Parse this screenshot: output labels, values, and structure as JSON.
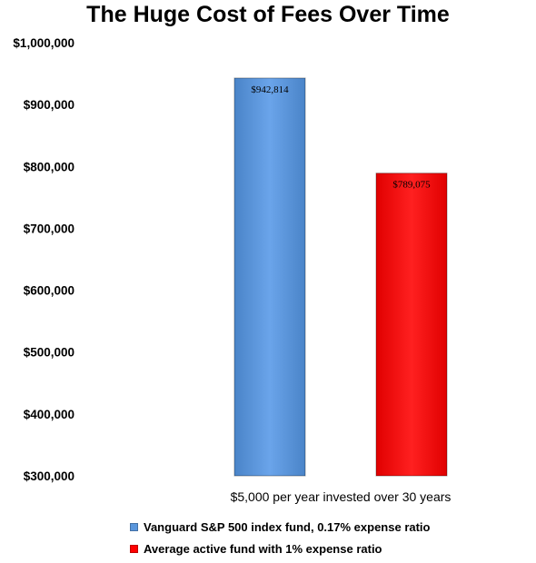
{
  "chart_data": {
    "type": "bar",
    "title": "The Huge Cost of Fees Over Time",
    "xlabel": "$5,000 per year invested over 30 years",
    "ylabel": "",
    "ylim": [
      300000,
      1000000
    ],
    "yticks": [
      "$300,000",
      "$400,000",
      "$500,000",
      "$600,000",
      "$700,000",
      "$800,000",
      "$900,000",
      "$1,000,000"
    ],
    "ytick_values": [
      300000,
      400000,
      500000,
      600000,
      700000,
      800000,
      900000,
      1000000
    ],
    "grid": false,
    "legend_position": "bottom",
    "series": [
      {
        "name": "Vanguard S&P 500 index fund, 0.17% expense ratio",
        "value": 942814,
        "label": "$942,814",
        "color": "#5a96dc"
      },
      {
        "name": "Average active fund with 1% expense ratio",
        "value": 789075,
        "label": "$789,075",
        "color": "#ff0000"
      }
    ]
  }
}
